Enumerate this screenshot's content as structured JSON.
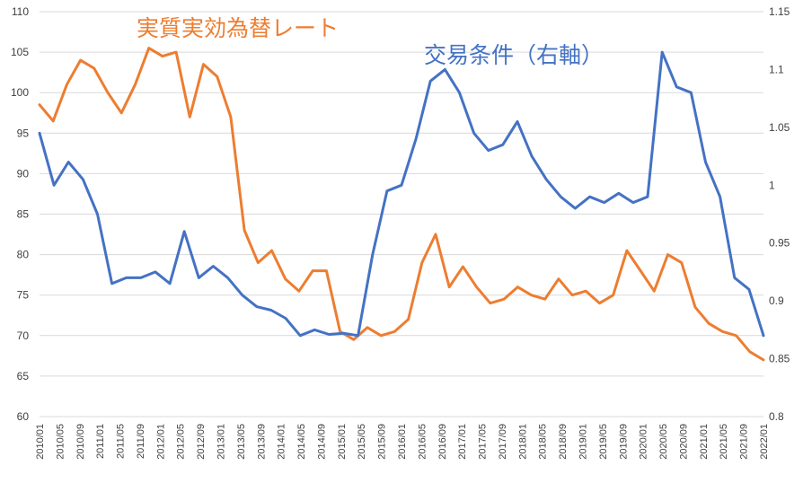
{
  "chart_data": {
    "type": "line",
    "title": "",
    "xlabel": "",
    "ylabel": "",
    "grid": true,
    "ylim_left": [
      60,
      110
    ],
    "left_ticks": [
      "60",
      "65",
      "70",
      "75",
      "80",
      "85",
      "90",
      "95",
      "100",
      "105",
      "110"
    ],
    "ylim_right": [
      0.8,
      1.15
    ],
    "right_ticks": [
      "0.8",
      "0.85",
      "0.9",
      "0.95",
      "1",
      "1.05",
      "1.1",
      "1.15"
    ],
    "x_labels": [
      "2010/01",
      "2010/05",
      "2010/09",
      "2011/01",
      "2011/05",
      "2011/09",
      "2012/01",
      "2012/05",
      "2012/09",
      "2013/01",
      "2013/05",
      "2013/09",
      "2014/01",
      "2014/05",
      "2014/09",
      "2015/01",
      "2015/05",
      "2015/09",
      "2016/01",
      "2016/05",
      "2016/09",
      "2017/01",
      "2017/05",
      "2017/09",
      "2018/01",
      "2018/05",
      "2018/09",
      "2019/01",
      "2019/05",
      "2019/09",
      "2020/01",
      "2020/05",
      "2020/09",
      "2021/01",
      "2021/05",
      "2021/09",
      "2022/01"
    ],
    "series": [
      {
        "name": "実質実効為替レート",
        "axis": "left",
        "color": "#ED7D31",
        "values": [
          98.5,
          96.5,
          101,
          104,
          103,
          100,
          97.5,
          101,
          105.5,
          104.5,
          105,
          97,
          103.5,
          102,
          97,
          83,
          79,
          80.5,
          77,
          75.5,
          78,
          78,
          70.5,
          69.5,
          71,
          70,
          70.5,
          72,
          79,
          82.5,
          76,
          78.5,
          76,
          74,
          74.5,
          76,
          75,
          74.5,
          77,
          75,
          75.5,
          74,
          75,
          80.5,
          78,
          75.5,
          80,
          79,
          73.5,
          71.5,
          70.5,
          70,
          68,
          67
        ]
      },
      {
        "name": "交易条件（右軸）",
        "axis": "right",
        "color": "#4472C4",
        "values": [
          1.045,
          1.0,
          1.02,
          1.005,
          0.975,
          0.915,
          0.92,
          0.92,
          0.925,
          0.915,
          0.96,
          0.92,
          0.93,
          0.92,
          0.905,
          0.895,
          0.892,
          0.885,
          0.87,
          0.875,
          0.871,
          0.872,
          0.87,
          0.94,
          0.995,
          1.0,
          1.04,
          1.09,
          1.1,
          1.08,
          1.045,
          1.03,
          1.035,
          1.055,
          1.025,
          1.005,
          0.99,
          0.98,
          0.99,
          0.985,
          0.993,
          0.985,
          0.99,
          1.115,
          1.085,
          1.08,
          1.02,
          0.99,
          0.92,
          0.91,
          0.87
        ]
      }
    ]
  }
}
